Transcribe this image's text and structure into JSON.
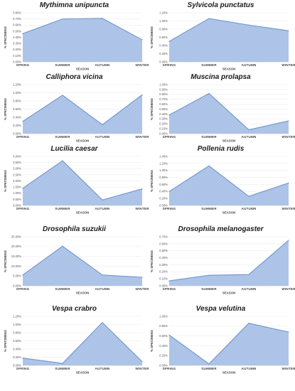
{
  "chart_data": [
    {
      "type": "area",
      "title": "Mythimna unipuncta",
      "categories": [
        "SPRING",
        "SUMMER",
        "AUTUMN",
        "WINTER"
      ],
      "values": [
        0.46,
        0.7,
        0.71,
        0.36
      ],
      "yticks": [
        "0.00%",
        "0.10%",
        "0.20%",
        "0.30%",
        "0.40%",
        "0.50%",
        "0.60%",
        "0.70%",
        "0.80%"
      ],
      "ylim": [
        0,
        0.8
      ],
      "xlabel": "SEASON",
      "ylabel": "% SPECIMENS"
    },
    {
      "type": "area",
      "title": "Sylvicola punctatus",
      "categories": [
        "SPRING",
        "SUMMER",
        "AUTUMN",
        "WINTER"
      ],
      "values": [
        0.5,
        1.06,
        0.9,
        0.76
      ],
      "yticks": [
        "0.00%",
        "0.20%",
        "0.40%",
        "0.60%",
        "0.80%",
        "1.00%",
        "1.20%"
      ],
      "ylim": [
        0,
        1.2
      ],
      "xlabel": "SEASON",
      "ylabel": "% SPECIMENS"
    },
    {
      "type": "area",
      "title": "Calliphora vicina",
      "categories": [
        "SPRING",
        "SUMMER",
        "AUTUMN",
        "WINTER"
      ],
      "values": [
        0.3,
        0.94,
        0.22,
        0.95
      ],
      "yticks": [
        "0.00%",
        "0.20%",
        "0.40%",
        "0.60%",
        "0.80%",
        "1.00%",
        "1.20%"
      ],
      "ylim": [
        0,
        1.2
      ],
      "xlabel": "SEASON",
      "ylabel": "% SPECIMENS"
    },
    {
      "type": "area",
      "title": "Muscina prolapsa",
      "categories": [
        "SPRING",
        "SUMMER",
        "AUTUMN",
        "WINTER"
      ],
      "values": [
        0.38,
        0.82,
        0.08,
        0.26
      ],
      "yticks": [
        "0.00%",
        "0.10%",
        "0.20%",
        "0.30%",
        "0.40%",
        "0.50%",
        "0.60%",
        "0.70%",
        "0.80%",
        "0.90%",
        "1.00%"
      ],
      "ylim": [
        0,
        1.0
      ],
      "xlabel": "SEASON",
      "ylabel": "% SPECIMENS"
    },
    {
      "type": "area",
      "title": "Lucilia caesar",
      "categories": [
        "SPRING",
        "SUMMER",
        "AUTUMN",
        "WINTER"
      ],
      "values": [
        1.4,
        3.65,
        0.45,
        1.35
      ],
      "yticks": [
        "0.00%",
        "0.50%",
        "1.00%",
        "1.50%",
        "2.00%",
        "2.50%",
        "3.00%",
        "3.50%",
        "4.00%"
      ],
      "ylim": [
        0,
        4.0
      ],
      "xlabel": "SEASON",
      "ylabel": "% SPECIMENS"
    },
    {
      "type": "area",
      "title": "Pollenia rudis",
      "categories": [
        "SPRING",
        "SUMMER",
        "AUTUMN",
        "WINTER"
      ],
      "values": [
        0.4,
        1.13,
        0.26,
        0.64
      ],
      "yticks": [
        "0.00%",
        "0.20%",
        "0.40%",
        "0.60%",
        "0.80%",
        "1.00%",
        "1.20%",
        "1.40%"
      ],
      "ylim": [
        0,
        1.4
      ],
      "xlabel": "SEASON",
      "ylabel": "% SPECIMENS"
    },
    {
      "type": "area",
      "title": "Drosophila suzukii",
      "categories": [
        "SPRING",
        "SUMMER",
        "AUTUMN",
        "WINTER"
      ],
      "values": [
        5.5,
        20.2,
        5.5,
        4.3
      ],
      "yticks": [
        "0.00%",
        "5.00%",
        "10.00%",
        "15.00%",
        "20.00%",
        "25.00%"
      ],
      "ylim": [
        0,
        25
      ],
      "xlabel": "SEASON",
      "ylabel": "% SPECIMENS"
    },
    {
      "type": "area",
      "title": "Drosophila melanogaster",
      "categories": [
        "SPRING",
        "SUMMER",
        "AUTUMN",
        "WINTER"
      ],
      "values": [
        0.07,
        0.15,
        0.16,
        0.65
      ],
      "yticks": [
        "0.00%",
        "0.10%",
        "0.20%",
        "0.30%",
        "0.40%",
        "0.50%",
        "0.60%",
        "0.70%"
      ],
      "ylim": [
        0,
        0.7
      ],
      "xlabel": "SEASON",
      "ylabel": "% SPECIMENS"
    },
    {
      "type": "area",
      "title": "Vespa crabro",
      "categories": [
        "SPRING",
        "SUMMER",
        "AUTUMN",
        "WINTER"
      ],
      "values": [
        0.18,
        0.05,
        1.05,
        0.09
      ],
      "yticks": [
        "0.00%",
        "0.20%",
        "0.40%",
        "0.60%",
        "0.80%",
        "1.00%",
        "1.20%"
      ],
      "ylim": [
        0,
        1.2
      ],
      "xlabel": "SEASON",
      "ylabel": "% SPECIMENS"
    },
    {
      "type": "area",
      "title": "Vespa velutina",
      "categories": [
        "SPRING",
        "SUMMER",
        "AUTUMN",
        "WINTER"
      ],
      "values": [
        0.62,
        0.03,
        0.86,
        0.68
      ],
      "yticks": [
        "0.00%",
        "0.20%",
        "0.40%",
        "0.60%",
        "0.80%",
        "1.00%"
      ],
      "ylim": [
        0,
        1.0
      ],
      "xlabel": "SEASON",
      "ylabel": "% SPECIMENS"
    }
  ],
  "colors": {
    "fill": "#a9c1e6",
    "line": "#6f95cf",
    "grid": "#e3e3e3",
    "axis": "#bdbdbd"
  }
}
